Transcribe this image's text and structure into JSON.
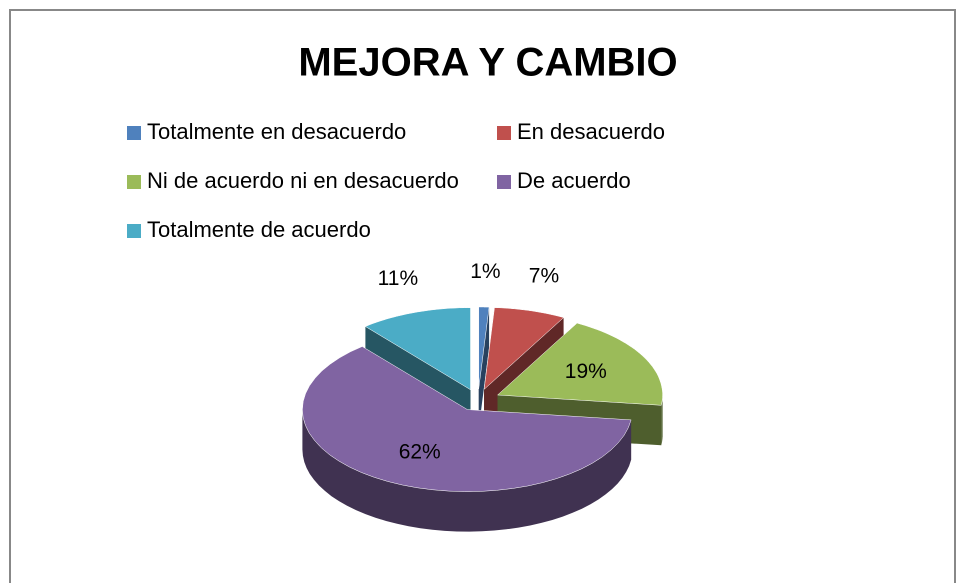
{
  "chart_data": {
    "type": "pie",
    "title": "MEJORA Y CAMBIO",
    "categories": [
      "Totalmente en desacuerdo",
      "En desacuerdo",
      "Ni de acuerdo ni en desacuerdo",
      "De acuerdo",
      "Totalmente de acuerdo"
    ],
    "values": [
      1,
      7,
      19,
      62,
      11
    ],
    "value_labels": [
      "1%",
      "7%",
      "19%",
      "62%",
      "11%"
    ],
    "colors": [
      "#4f81bd",
      "#c0504d",
      "#9bbb59",
      "#8064a2",
      "#4bacc6"
    ],
    "legend": "top"
  }
}
